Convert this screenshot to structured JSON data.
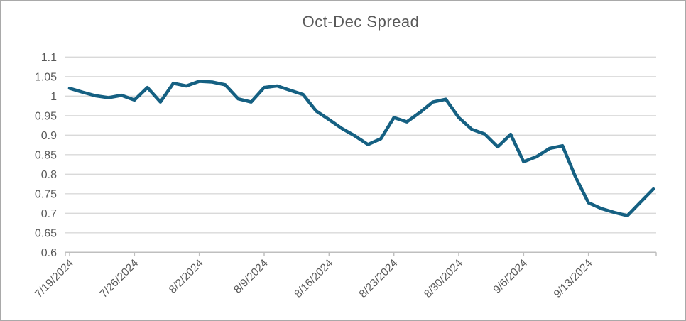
{
  "chart_data": {
    "type": "line",
    "title": "Oct-Dec Spread",
    "series_name": "Oct-Dec Spread",
    "legend": "none",
    "grid": true,
    "ylim": [
      0.6,
      1.1
    ],
    "y_tick_step": 0.05,
    "y_tick_labels": [
      "1.1",
      "1.05",
      "1",
      "0.95",
      "0.9",
      "0.85",
      "0.8",
      "0.75",
      "0.7",
      "0.65",
      "0.6"
    ],
    "x_tick_labels": [
      "7/19/2024",
      "7/26/2024",
      "8/2/2024",
      "8/9/2024",
      "8/16/2024",
      "8/23/2024",
      "8/30/2024",
      "9/6/2024",
      "9/13/2024"
    ],
    "x": [
      "7/19/2024",
      "7/22/2024",
      "7/23/2024",
      "7/24/2024",
      "7/25/2024",
      "7/26/2024",
      "7/29/2024",
      "7/30/2024",
      "7/31/2024",
      "8/1/2024",
      "8/2/2024",
      "8/5/2024",
      "8/6/2024",
      "8/7/2024",
      "8/8/2024",
      "8/9/2024",
      "8/12/2024",
      "8/13/2024",
      "8/14/2024",
      "8/15/2024",
      "8/16/2024",
      "8/19/2024",
      "8/20/2024",
      "8/21/2024",
      "8/22/2024",
      "8/23/2024",
      "8/26/2024",
      "8/27/2024",
      "8/28/2024",
      "8/29/2024",
      "8/30/2024",
      "9/2/2024",
      "9/3/2024",
      "9/4/2024",
      "9/5/2024",
      "9/6/2024",
      "9/9/2024",
      "9/10/2024",
      "9/11/2024",
      "9/12/2024",
      "9/13/2024",
      "9/16/2024",
      "9/17/2024",
      "9/18/2024",
      "9/19/2024",
      "9/20/2024"
    ],
    "values": [
      1.02,
      1.01,
      1.001,
      0.996,
      1.002,
      0.99,
      1.022,
      0.985,
      1.033,
      1.026,
      1.038,
      1.036,
      1.029,
      0.993,
      0.985,
      1.022,
      1.026,
      1.015,
      1.004,
      0.962,
      0.94,
      0.917,
      0.898,
      0.876,
      0.891,
      0.945,
      0.934,
      0.958,
      0.985,
      0.992,
      0.945,
      0.915,
      0.903,
      0.87,
      0.902,
      0.832,
      0.845,
      0.866,
      0.873,
      0.793,
      0.727,
      0.712,
      0.702,
      0.694,
      0.728,
      0.762
    ],
    "colors": {
      "line": "#156082",
      "gridline": "#d9d9d9",
      "axis": "#bfbfbf",
      "text": "#595959",
      "background": "#ffffff",
      "frame": "#a9a9a9"
    }
  }
}
